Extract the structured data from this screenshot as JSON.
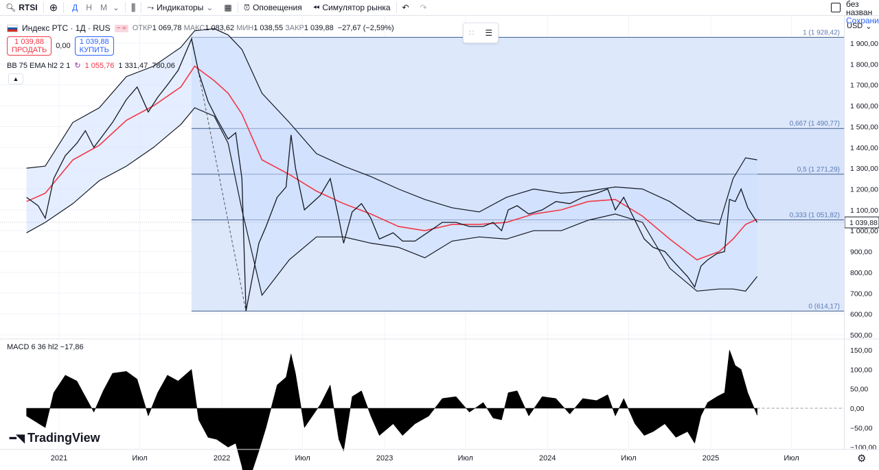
{
  "toolbar": {
    "symbol": "RTSI",
    "timeframes": [
      "Д",
      "Н",
      "М"
    ],
    "indicators_label": "Индикаторы",
    "alerts_label": "Оповещения",
    "simulator_label": "Симулятор рынка",
    "layout_name": "без назван",
    "save_label": "Сохранит"
  },
  "legend": {
    "title": "Индекс РТС · 1Д · RUS",
    "open_label": "ОТКР",
    "open": "1 069,78",
    "high_label": "МАКС",
    "high": "1 083,62",
    "low_label": "МИН",
    "low": "1 038,55",
    "close_label": "ЗАКР",
    "close": "1 039,88",
    "change": "−27,67 (−2,59%)"
  },
  "trade": {
    "sell_price": "1 039,88",
    "sell_label": "ПРОДАТЬ",
    "spread": "0,00",
    "buy_price": "1 039,88",
    "buy_label": "КУПИТЬ"
  },
  "bb_legend": {
    "name": "BB 75 EMA hl2 2 1",
    "basis": "1 055,76",
    "upper": "1 331,47",
    "lower": "780,06"
  },
  "macd_legend": {
    "name": "MACD 6 36 hl2",
    "value": "−17,86"
  },
  "currency": "USD",
  "logo": "TradingView",
  "colors": {
    "accent": "#2962ff",
    "bb_basis": "#f23645",
    "band_fill": "#cfe0ff",
    "fib_fill": "#dbe7fb",
    "fib_line": "#3d5a8a",
    "price": "#131722",
    "grid": "#f0f3fa"
  },
  "chart_data": {
    "type": "line",
    "title": "Индекс РТС · 1Д · RUS",
    "y_axis": {
      "min": 500,
      "max": 1950,
      "ticks": [
        1900,
        1800,
        1700,
        1600,
        1500,
        1400,
        1300,
        1200,
        1100,
        1000,
        900,
        800,
        700,
        600,
        500
      ],
      "tick_labels": [
        "1 900,00",
        "1 800,00",
        "1 700,00",
        "1 600,00",
        "1 500,00",
        "1 400,00",
        "1 300,00",
        "1 200,00",
        "1 100,00",
        "1 000,00",
        "900,00",
        "800,00",
        "700,00",
        "600,00",
        "500,00"
      ]
    },
    "x_axis": {
      "range": [
        "2020-10-20",
        "2025-09-30"
      ],
      "ticks": [
        {
          "date": "2021-01-01",
          "label": "2021"
        },
        {
          "date": "2021-07-01",
          "label": "Июл"
        },
        {
          "date": "2022-01-01",
          "label": "2022"
        },
        {
          "date": "2022-07-01",
          "label": "Июл"
        },
        {
          "date": "2023-01-01",
          "label": "2023"
        },
        {
          "date": "2023-07-01",
          "label": "Июл"
        },
        {
          "date": "2024-01-01",
          "label": "2024"
        },
        {
          "date": "2024-07-01",
          "label": "Июл"
        },
        {
          "date": "2025-01-01",
          "label": "2025"
        },
        {
          "date": "2025-07-01",
          "label": "Июл"
        }
      ]
    },
    "last_price_label": "1 039,88",
    "last_price": 1039.88,
    "fib": {
      "start_date": "2021-10-25",
      "end_date": "2025-04-15",
      "levels": [
        {
          "label": "1 (1 928,42)",
          "value": 1928.42
        },
        {
          "label": "0,667 (1 490,77)",
          "value": 1490.77
        },
        {
          "label": "0,5 (1 271,29)",
          "value": 1271.29
        },
        {
          "label": "0,333 (1 051,82)",
          "value": 1051.82
        },
        {
          "label": "0 (614,17)",
          "value": 614.17
        }
      ]
    },
    "trend_line": [
      [
        "2021-10-25",
        1928.42
      ],
      [
        "2022-02-24",
        614.17
      ]
    ],
    "price": [
      [
        "2020-10-20",
        1160
      ],
      [
        "2020-11-15",
        1120
      ],
      [
        "2020-12-01",
        1060
      ],
      [
        "2020-12-20",
        1250
      ],
      [
        "2021-01-15",
        1360
      ],
      [
        "2021-02-10",
        1420
      ],
      [
        "2021-03-01",
        1480
      ],
      [
        "2021-03-20",
        1400
      ],
      [
        "2021-04-10",
        1460
      ],
      [
        "2021-05-01",
        1520
      ],
      [
        "2021-06-01",
        1630
      ],
      [
        "2021-06-25",
        1690
      ],
      [
        "2021-07-20",
        1570
      ],
      [
        "2021-08-10",
        1640
      ],
      [
        "2021-09-01",
        1700
      ],
      [
        "2021-09-25",
        1770
      ],
      [
        "2021-10-25",
        1920
      ],
      [
        "2021-11-10",
        1760
      ],
      [
        "2021-12-01",
        1620
      ],
      [
        "2021-12-20",
        1540
      ],
      [
        "2022-01-15",
        1440
      ],
      [
        "2022-02-01",
        1470
      ],
      [
        "2022-02-15",
        1250
      ],
      [
        "2022-02-24",
        614
      ],
      [
        "2022-03-25",
        940
      ],
      [
        "2022-04-10",
        1020
      ],
      [
        "2022-05-05",
        1160
      ],
      [
        "2022-05-25",
        1210
      ],
      [
        "2022-06-05",
        1460
      ],
      [
        "2022-06-15",
        1300
      ],
      [
        "2022-07-05",
        1100
      ],
      [
        "2022-08-10",
        1170
      ],
      [
        "2022-09-01",
        1250
      ],
      [
        "2022-09-20",
        1060
      ],
      [
        "2022-10-01",
        940
      ],
      [
        "2022-10-20",
        1090
      ],
      [
        "2022-11-10",
        1130
      ],
      [
        "2022-12-01",
        1060
      ],
      [
        "2022-12-20",
        960
      ],
      [
        "2023-01-20",
        990
      ],
      [
        "2023-02-10",
        950
      ],
      [
        "2023-03-10",
        950
      ],
      [
        "2023-04-10",
        995
      ],
      [
        "2023-05-10",
        1040
      ],
      [
        "2023-06-10",
        1040
      ],
      [
        "2023-07-10",
        1020
      ],
      [
        "2023-08-10",
        1020
      ],
      [
        "2023-09-01",
        1040
      ],
      [
        "2023-09-20",
        1000
      ],
      [
        "2023-10-05",
        1100
      ],
      [
        "2023-10-25",
        1120
      ],
      [
        "2023-11-20",
        1080
      ],
      [
        "2023-12-20",
        1100
      ],
      [
        "2024-01-20",
        1140
      ],
      [
        "2024-02-20",
        1130
      ],
      [
        "2024-03-20",
        1160
      ],
      [
        "2024-04-20",
        1180
      ],
      [
        "2024-05-15",
        1200
      ],
      [
        "2024-06-01",
        1100
      ],
      [
        "2024-06-20",
        1160
      ],
      [
        "2024-07-15",
        1050
      ],
      [
        "2024-08-05",
        960
      ],
      [
        "2024-08-25",
        920
      ],
      [
        "2024-09-20",
        900
      ],
      [
        "2024-10-15",
        840
      ],
      [
        "2024-11-10",
        780
      ],
      [
        "2024-11-26",
        730
      ],
      [
        "2024-12-10",
        830
      ],
      [
        "2024-12-25",
        860
      ],
      [
        "2025-01-15",
        890
      ],
      [
        "2025-02-01",
        900
      ],
      [
        "2025-02-12",
        1150
      ],
      [
        "2025-02-25",
        1140
      ],
      [
        "2025-03-10",
        1200
      ],
      [
        "2025-03-25",
        1110
      ],
      [
        "2025-04-15",
        1040
      ]
    ],
    "bb_upper": [
      [
        "2020-10-20",
        1300
      ],
      [
        "2020-12-01",
        1310
      ],
      [
        "2021-02-01",
        1520
      ],
      [
        "2021-04-01",
        1590
      ],
      [
        "2021-06-01",
        1740
      ],
      [
        "2021-08-01",
        1790
      ],
      [
        "2021-10-01",
        1880
      ],
      [
        "2021-11-01",
        1960
      ],
      [
        "2021-12-15",
        1970
      ],
      [
        "2022-01-15",
        1940
      ],
      [
        "2022-02-15",
        1870
      ],
      [
        "2022-04-01",
        1660
      ],
      [
        "2022-06-01",
        1520
      ],
      [
        "2022-08-01",
        1370
      ],
      [
        "2022-10-01",
        1310
      ],
      [
        "2022-12-01",
        1260
      ],
      [
        "2023-02-01",
        1200
      ],
      [
        "2023-04-01",
        1150
      ],
      [
        "2023-06-01",
        1110
      ],
      [
        "2023-08-01",
        1090
      ],
      [
        "2023-10-01",
        1160
      ],
      [
        "2023-12-01",
        1200
      ],
      [
        "2024-02-01",
        1180
      ],
      [
        "2024-04-01",
        1190
      ],
      [
        "2024-06-01",
        1210
      ],
      [
        "2024-08-01",
        1200
      ],
      [
        "2024-10-01",
        1140
      ],
      [
        "2024-12-01",
        1050
      ],
      [
        "2025-01-20",
        1030
      ],
      [
        "2025-02-20",
        1250
      ],
      [
        "2025-03-20",
        1350
      ],
      [
        "2025-04-15",
        1340
      ]
    ],
    "bb_basis": [
      [
        "2020-10-20",
        1140
      ],
      [
        "2020-12-01",
        1180
      ],
      [
        "2021-02-01",
        1340
      ],
      [
        "2021-04-01",
        1410
      ],
      [
        "2021-06-01",
        1530
      ],
      [
        "2021-08-01",
        1600
      ],
      [
        "2021-10-01",
        1690
      ],
      [
        "2021-11-01",
        1790
      ],
      [
        "2021-12-15",
        1720
      ],
      [
        "2022-01-15",
        1660
      ],
      [
        "2022-02-15",
        1560
      ],
      [
        "2022-04-01",
        1340
      ],
      [
        "2022-06-01",
        1270
      ],
      [
        "2022-08-01",
        1190
      ],
      [
        "2022-10-01",
        1130
      ],
      [
        "2022-12-01",
        1080
      ],
      [
        "2023-02-01",
        1020
      ],
      [
        "2023-04-01",
        1000
      ],
      [
        "2023-06-01",
        1030
      ],
      [
        "2023-08-01",
        1030
      ],
      [
        "2023-10-01",
        1040
      ],
      [
        "2023-12-01",
        1080
      ],
      [
        "2024-02-01",
        1100
      ],
      [
        "2024-04-01",
        1140
      ],
      [
        "2024-06-01",
        1150
      ],
      [
        "2024-08-01",
        1070
      ],
      [
        "2024-10-01",
        960
      ],
      [
        "2024-12-01",
        860
      ],
      [
        "2025-01-20",
        900
      ],
      [
        "2025-02-20",
        960
      ],
      [
        "2025-03-20",
        1030
      ],
      [
        "2025-04-15",
        1055
      ]
    ],
    "bb_lower": [
      [
        "2020-10-20",
        990
      ],
      [
        "2020-12-01",
        1040
      ],
      [
        "2021-02-01",
        1130
      ],
      [
        "2021-04-01",
        1240
      ],
      [
        "2021-06-01",
        1310
      ],
      [
        "2021-08-01",
        1400
      ],
      [
        "2021-10-01",
        1510
      ],
      [
        "2021-11-01",
        1590
      ],
      [
        "2021-12-15",
        1550
      ],
      [
        "2022-01-15",
        1420
      ],
      [
        "2022-02-15",
        1100
      ],
      [
        "2022-04-01",
        690
      ],
      [
        "2022-06-01",
        860
      ],
      [
        "2022-08-01",
        970
      ],
      [
        "2022-10-01",
        970
      ],
      [
        "2022-12-01",
        940
      ],
      [
        "2023-02-01",
        920
      ],
      [
        "2023-04-01",
        870
      ],
      [
        "2023-06-01",
        950
      ],
      [
        "2023-08-01",
        970
      ],
      [
        "2023-10-01",
        960
      ],
      [
        "2023-12-01",
        1000
      ],
      [
        "2024-02-01",
        1000
      ],
      [
        "2024-04-01",
        1050
      ],
      [
        "2024-06-01",
        1080
      ],
      [
        "2024-08-01",
        1040
      ],
      [
        "2024-10-01",
        820
      ],
      [
        "2024-12-01",
        710
      ],
      [
        "2025-01-20",
        720
      ],
      [
        "2025-02-20",
        720
      ],
      [
        "2025-03-20",
        710
      ],
      [
        "2025-04-15",
        780
      ]
    ],
    "macd": {
      "y_ticks": [
        150,
        100,
        50,
        0,
        -50,
        -100
      ],
      "y_tick_labels": [
        "150,00",
        "100,00",
        "50,00",
        "0,00",
        "−50,00",
        "−100,00"
      ],
      "zero": 0,
      "histogram": [
        [
          "2020-10-20",
          -20
        ],
        [
          "2020-11-10",
          -35
        ],
        [
          "2020-12-01",
          -50
        ],
        [
          "2020-12-20",
          40
        ],
        [
          "2021-01-15",
          85
        ],
        [
          "2021-02-10",
          70
        ],
        [
          "2021-03-01",
          30
        ],
        [
          "2021-03-20",
          -10
        ],
        [
          "2021-04-10",
          45
        ],
        [
          "2021-05-01",
          90
        ],
        [
          "2021-06-01",
          95
        ],
        [
          "2021-06-25",
          75
        ],
        [
          "2021-07-20",
          -20
        ],
        [
          "2021-08-10",
          40
        ],
        [
          "2021-09-01",
          85
        ],
        [
          "2021-09-25",
          70
        ],
        [
          "2021-10-25",
          100
        ],
        [
          "2021-11-10",
          -30
        ],
        [
          "2021-12-01",
          -75
        ],
        [
          "2021-12-20",
          -80
        ],
        [
          "2022-01-15",
          -100
        ],
        [
          "2022-02-01",
          -90
        ],
        [
          "2022-02-15",
          -150
        ],
        [
          "2022-02-24",
          -210
        ],
        [
          "2022-03-25",
          -110
        ],
        [
          "2022-04-10",
          -50
        ],
        [
          "2022-05-05",
          60
        ],
        [
          "2022-05-25",
          80
        ],
        [
          "2022-06-05",
          140
        ],
        [
          "2022-06-15",
          90
        ],
        [
          "2022-07-05",
          -50
        ],
        [
          "2022-08-10",
          10
        ],
        [
          "2022-09-01",
          60
        ],
        [
          "2022-09-20",
          -80
        ],
        [
          "2022-10-01",
          -110
        ],
        [
          "2022-10-20",
          30
        ],
        [
          "2022-11-10",
          45
        ],
        [
          "2022-12-01",
          -20
        ],
        [
          "2022-12-20",
          -70
        ],
        [
          "2023-01-20",
          -40
        ],
        [
          "2023-02-10",
          -70
        ],
        [
          "2023-03-10",
          -40
        ],
        [
          "2023-04-10",
          -20
        ],
        [
          "2023-05-10",
          25
        ],
        [
          "2023-06-10",
          30
        ],
        [
          "2023-07-10",
          -10
        ],
        [
          "2023-08-10",
          15
        ],
        [
          "2023-09-01",
          -25
        ],
        [
          "2023-09-20",
          -30
        ],
        [
          "2023-10-05",
          40
        ],
        [
          "2023-10-25",
          45
        ],
        [
          "2023-11-20",
          -20
        ],
        [
          "2023-12-20",
          30
        ],
        [
          "2024-01-20",
          25
        ],
        [
          "2024-02-20",
          -15
        ],
        [
          "2024-03-20",
          25
        ],
        [
          "2024-04-20",
          20
        ],
        [
          "2024-05-15",
          35
        ],
        [
          "2024-06-01",
          -20
        ],
        [
          "2024-06-20",
          25
        ],
        [
          "2024-07-15",
          -40
        ],
        [
          "2024-08-05",
          -70
        ],
        [
          "2024-08-25",
          -60
        ],
        [
          "2024-09-20",
          -40
        ],
        [
          "2024-10-15",
          -75
        ],
        [
          "2024-11-10",
          -60
        ],
        [
          "2024-11-26",
          -90
        ],
        [
          "2024-12-10",
          -20
        ],
        [
          "2024-12-25",
          15
        ],
        [
          "2025-01-15",
          30
        ],
        [
          "2025-02-01",
          40
        ],
        [
          "2025-02-12",
          150
        ],
        [
          "2025-02-25",
          110
        ],
        [
          "2025-03-10",
          100
        ],
        [
          "2025-03-25",
          40
        ],
        [
          "2025-04-15",
          -18
        ]
      ]
    }
  }
}
